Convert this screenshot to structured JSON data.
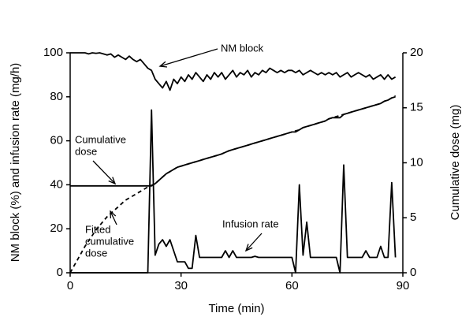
{
  "chart_data": {
    "type": "line",
    "xlabel": "Time (min)",
    "ylabel": "NM block (%) and infusion rate (mg/h)",
    "y2label": "Cumulative dose (mg)",
    "xlim": [
      0,
      90
    ],
    "xticks": [
      0,
      30,
      60,
      90
    ],
    "ylim": [
      0,
      100
    ],
    "yticks": [
      0,
      20,
      40,
      60,
      80,
      100
    ],
    "y2lim": [
      0,
      20
    ],
    "y2ticks": [
      0,
      5,
      10,
      15,
      20
    ],
    "grid": false,
    "x": [
      0,
      1,
      2,
      3,
      4,
      5,
      6,
      7,
      8,
      9,
      10,
      11,
      12,
      13,
      14,
      15,
      16,
      17,
      18,
      19,
      20,
      21,
      22,
      23,
      24,
      25,
      26,
      27,
      28,
      29,
      30,
      31,
      32,
      33,
      34,
      35,
      36,
      37,
      38,
      39,
      40,
      41,
      42,
      43,
      44,
      45,
      46,
      47,
      48,
      49,
      50,
      51,
      52,
      53,
      54,
      55,
      56,
      57,
      58,
      59,
      60,
      61,
      62,
      63,
      64,
      65,
      66,
      67,
      68,
      69,
      70,
      71,
      72,
      73,
      74,
      75,
      76,
      77,
      78,
      79,
      80,
      81,
      82,
      83,
      84,
      85,
      86,
      87,
      88
    ],
    "series": [
      {
        "name": "NM block",
        "color": "#000000",
        "dash": false,
        "values": [
          100,
          100,
          100,
          100,
          100,
          99.5,
          100,
          99.8,
          100,
          99.5,
          99,
          99.5,
          98,
          99,
          98,
          97,
          98.5,
          97,
          96,
          97,
          95,
          93,
          92,
          88,
          86,
          84,
          87,
          83,
          88,
          86,
          89,
          87,
          90,
          88,
          91,
          89,
          87,
          90,
          88,
          91,
          89,
          91,
          88,
          90,
          92,
          89,
          91,
          90,
          92,
          89,
          91,
          90,
          92,
          91,
          93,
          92,
          91,
          92,
          91,
          92,
          92,
          91,
          92,
          90,
          91,
          92,
          91,
          90,
          91,
          90,
          91,
          90,
          91,
          89,
          90,
          91,
          89,
          90,
          91,
          90,
          89,
          90,
          88,
          89,
          90,
          88,
          90,
          88,
          89
        ]
      },
      {
        "name": "Infusion rate",
        "color": "#000000",
        "dash": false,
        "values": [
          0,
          0,
          0,
          0,
          0,
          0,
          0,
          0,
          0,
          0,
          0,
          0,
          0,
          0,
          0,
          0,
          0,
          0,
          0,
          0,
          0,
          0,
          74,
          8,
          13,
          15,
          12,
          15,
          10,
          5,
          5,
          5,
          2,
          2,
          17,
          7,
          7,
          7,
          7,
          7,
          7,
          7,
          10,
          7,
          10,
          7,
          7,
          7,
          7,
          7,
          7.5,
          7,
          7,
          7,
          7,
          7,
          7,
          7,
          7,
          7,
          7,
          0,
          40,
          8,
          23,
          7,
          7,
          7,
          7,
          7,
          7,
          7,
          7,
          0,
          49,
          7,
          7,
          7,
          7,
          7,
          10,
          7,
          7,
          7,
          12,
          7,
          7,
          41,
          7
        ]
      },
      {
        "name": "Cumulative dose",
        "color": "#000000",
        "dash": false,
        "axis": "y2",
        "values": [
          7.9,
          7.9,
          7.9,
          7.9,
          7.9,
          7.9,
          7.9,
          7.9,
          7.9,
          7.9,
          7.9,
          7.9,
          7.9,
          7.9,
          7.9,
          7.9,
          7.9,
          7.9,
          7.9,
          7.9,
          7.9,
          7.9,
          7.9,
          8.1,
          8.4,
          8.7,
          9.0,
          9.2,
          9.4,
          9.6,
          9.7,
          9.8,
          9.9,
          10.0,
          10.1,
          10.2,
          10.3,
          10.4,
          10.5,
          10.6,
          10.7,
          10.8,
          10.95,
          11.1,
          11.2,
          11.3,
          11.4,
          11.5,
          11.6,
          11.7,
          11.8,
          11.9,
          12.0,
          12.1,
          12.2,
          12.3,
          12.4,
          12.5,
          12.6,
          12.7,
          12.8,
          12.8,
          13.0,
          13.2,
          13.3,
          13.4,
          13.5,
          13.6,
          13.7,
          13.8,
          14.0,
          14.1,
          14.1,
          14.1,
          14.4,
          14.5,
          14.6,
          14.7,
          14.8,
          14.9,
          15.0,
          15.1,
          15.2,
          15.3,
          15.4,
          15.6,
          15.7,
          15.9,
          16.0
        ]
      },
      {
        "name": "Fitted cumulative dose",
        "color": "#000000",
        "dash": true,
        "axis": "y2",
        "values": [
          0,
          0.6,
          1.2,
          1.8,
          2.4,
          2.9,
          3.4,
          3.9,
          4.3,
          4.7,
          5.1,
          5.4,
          5.7,
          6.0,
          6.3,
          6.6,
          6.8,
          7.0,
          7.2,
          7.4,
          7.6,
          7.8,
          7.95,
          8.1,
          8.4,
          8.7,
          9.0,
          9.2,
          9.4,
          9.6,
          9.7,
          9.8,
          9.9,
          10.0,
          10.1,
          10.2,
          10.3,
          10.4,
          10.5,
          10.6,
          10.7,
          10.8,
          10.95,
          11.1,
          11.2,
          11.3,
          11.4,
          11.5,
          11.6,
          11.7,
          11.8,
          11.9,
          12.0,
          12.1,
          12.2,
          12.3,
          12.4,
          12.5,
          12.6,
          12.7,
          12.8,
          12.9,
          13.0,
          13.2,
          13.3,
          13.4,
          13.5,
          13.6,
          13.7,
          13.8,
          14.0,
          14.1,
          14.2,
          14.3,
          14.4,
          14.5,
          14.6,
          14.7,
          14.8,
          14.9,
          15.0,
          15.1,
          15.2,
          15.3,
          15.4,
          15.6,
          15.7,
          15.9,
          16.1
        ]
      }
    ],
    "annotations": [
      {
        "lines": [
          "NM block"
        ]
      },
      {
        "lines": [
          "Cumulative",
          "dose"
        ]
      },
      {
        "lines": [
          "Fitted",
          "cumulative",
          "dose"
        ]
      },
      {
        "lines": [
          "Infusion rate"
        ]
      }
    ]
  }
}
